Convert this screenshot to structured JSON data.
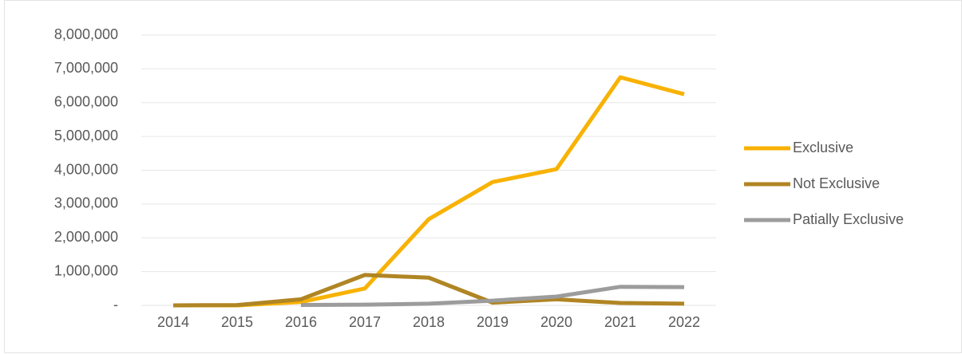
{
  "chart_data": {
    "type": "line",
    "categories": [
      "2014",
      "2015",
      "2016",
      "2017",
      "2018",
      "2019",
      "2020",
      "2021",
      "2022"
    ],
    "series": [
      {
        "name": "Exclusive",
        "color": "#f8b204",
        "values": [
          0,
          0,
          100000,
          500000,
          2550000,
          3650000,
          4030000,
          6750000,
          6250000
        ]
      },
      {
        "name": "Not Exclusive",
        "color": "#b08524",
        "values": [
          0,
          10000,
          180000,
          900000,
          820000,
          80000,
          180000,
          70000,
          50000
        ]
      },
      {
        "name": "Patially Exclusive",
        "color": "#9c9c9c",
        "values": [
          null,
          null,
          10000,
          20000,
          50000,
          140000,
          260000,
          550000,
          540000
        ]
      }
    ],
    "ylim": [
      0,
      8000000
    ],
    "yticks": [
      {
        "value": 0,
        "label": "-"
      },
      {
        "value": 1000000,
        "label": "1,000,000"
      },
      {
        "value": 2000000,
        "label": "2,000,000"
      },
      {
        "value": 3000000,
        "label": "3,000,000"
      },
      {
        "value": 4000000,
        "label": "4,000,000"
      },
      {
        "value": 5000000,
        "label": "5,000,000"
      },
      {
        "value": 6000000,
        "label": "6,000,000"
      },
      {
        "value": 7000000,
        "label": "7,000,000"
      },
      {
        "value": 8000000,
        "label": "8,000,000"
      }
    ],
    "grid": true,
    "legend": "right"
  }
}
